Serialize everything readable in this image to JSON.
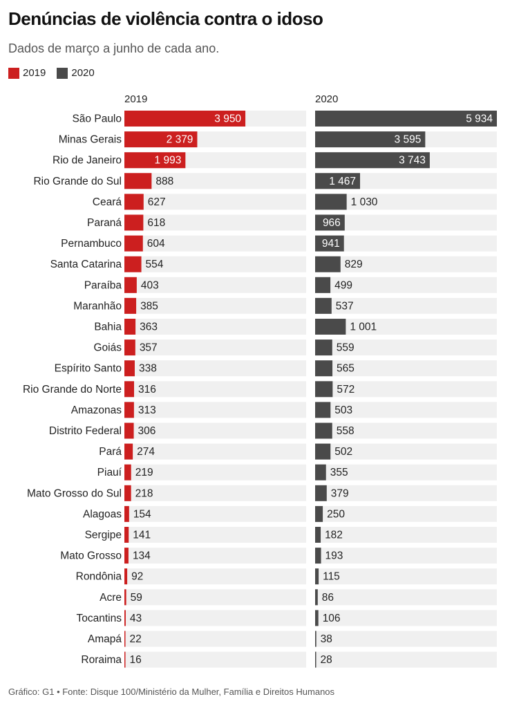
{
  "title": "Denúncias de violência contra o idoso",
  "subtitle": "Dados de março a junho de cada ano.",
  "legend": [
    {
      "label": "2019",
      "color": "#cc1f1f"
    },
    {
      "label": "2020",
      "color": "#4a4a4a"
    }
  ],
  "footer": "Gráfico: G1 • Fonte: Disque 100/Ministério da Mulher, Família e Direitos Humanos",
  "chart_data": {
    "type": "bar",
    "orientation": "horizontal",
    "categories": [
      "São Paulo",
      "Minas Gerais",
      "Rio de Janeiro",
      "Rio Grande do Sul",
      "Ceará",
      "Paraná",
      "Pernambuco",
      "Santa Catarina",
      "Paraíba",
      "Maranhão",
      "Bahia",
      "Goiás",
      "Espírito Santo",
      "Rio Grande do Norte",
      "Amazonas",
      "Distrito Federal",
      "Pará",
      "Piauí",
      "Mato Grosso do Sul",
      "Alagoas",
      "Sergipe",
      "Mato Grosso",
      "Rondônia",
      "Acre",
      "Tocantins",
      "Amapá",
      "Roraima"
    ],
    "series": [
      {
        "name": "2019",
        "color": "#cc1f1f",
        "values": [
          3950,
          2379,
          1993,
          888,
          627,
          618,
          604,
          554,
          403,
          385,
          363,
          357,
          338,
          316,
          313,
          306,
          274,
          219,
          218,
          154,
          141,
          134,
          92,
          59,
          43,
          22,
          16
        ],
        "labels": [
          "3 950",
          "2 379",
          "1 993",
          "888",
          "627",
          "618",
          "604",
          "554",
          "403",
          "385",
          "363",
          "357",
          "338",
          "316",
          "313",
          "306",
          "274",
          "219",
          "218",
          "154",
          "141",
          "134",
          "92",
          "59",
          "43",
          "22",
          "16"
        ]
      },
      {
        "name": "2020",
        "color": "#4a4a4a",
        "values": [
          5934,
          3595,
          3743,
          1467,
          1030,
          966,
          941,
          829,
          499,
          537,
          1001,
          559,
          565,
          572,
          503,
          558,
          502,
          355,
          379,
          250,
          182,
          193,
          115,
          86,
          106,
          38,
          28
        ],
        "labels": [
          "5 934",
          "3 595",
          "3 743",
          "1 467",
          "1 030",
          "966",
          "941",
          "829",
          "499",
          "537",
          "1 001",
          "559",
          "565",
          "572",
          "503",
          "558",
          "502",
          "355",
          "379",
          "250",
          "182",
          "193",
          "115",
          "86",
          "106",
          "38",
          "28"
        ]
      }
    ],
    "xlim": [
      0,
      5934
    ],
    "grid": false,
    "legend_position": "top-left"
  }
}
